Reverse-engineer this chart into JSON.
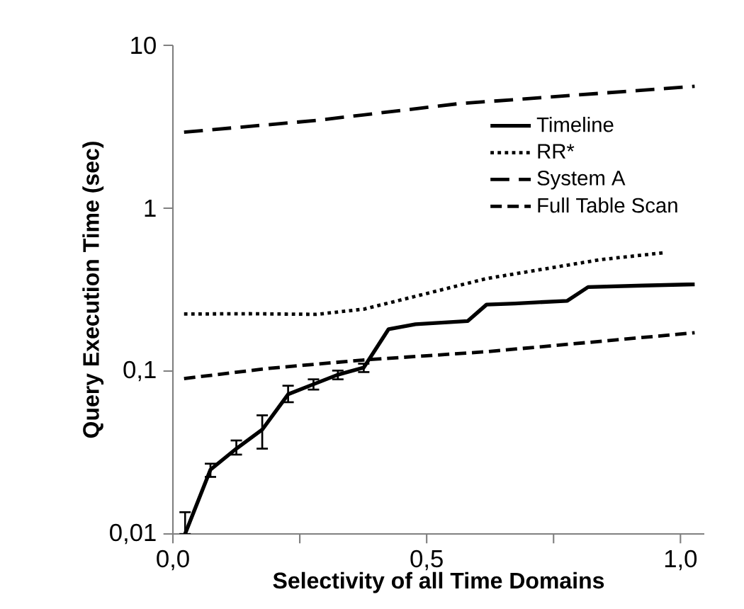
{
  "chart_data": {
    "type": "line",
    "xlabel": "Selectivity of all Time Domains",
    "ylabel": "Query Execution Time (sec)",
    "log": "y",
    "xlim": [
      0,
      1.047
    ],
    "ylim": [
      0.01,
      10
    ],
    "xticks": [
      {
        "value": 0,
        "label": "0,0"
      },
      {
        "value": 0.25,
        "label": null
      },
      {
        "value": 0.5,
        "label": "0,5"
      },
      {
        "value": 0.75,
        "label": null
      },
      {
        "value": 1,
        "label": "1,0"
      }
    ],
    "yticks": [
      {
        "value": 0.01,
        "label": "0,01"
      },
      {
        "value": 0.1,
        "label": "0,1"
      },
      {
        "value": 1,
        "label": "1"
      },
      {
        "value": 10,
        "label": "10"
      }
    ],
    "grid": false,
    "legend": "top right",
    "marker": "none",
    "series": [
      {
        "name": "Timeline",
        "color": "#000000",
        "line_style": "solid",
        "x": [
          0.024,
          0.074,
          0.125,
          0.176,
          0.227,
          0.277,
          0.325,
          0.376,
          0.425,
          0.478,
          0.581,
          0.618,
          0.674,
          0.777,
          0.818,
          0.926,
          1.028
        ],
        "values": [
          0.01,
          0.0248,
          0.0334,
          0.0437,
          0.072,
          0.083,
          0.095,
          0.105,
          0.181,
          0.194,
          0.203,
          0.256,
          0.26,
          0.27,
          0.328,
          0.335,
          0.341
        ],
        "errors": [
          [
            0.01,
            0.0136
          ],
          [
            0.0224,
            0.027
          ],
          [
            0.0307,
            0.0375
          ],
          [
            0.0334,
            0.0535
          ],
          [
            0.0644,
            0.0813
          ],
          [
            0.077,
            0.089
          ],
          [
            0.089,
            0.1007
          ],
          [
            0.0986,
            0.111
          ],
          null,
          null,
          null,
          null,
          null,
          null,
          null,
          null,
          null
        ]
      },
      {
        "name": "RR*",
        "color": "#000000",
        "line_style": "dotted",
        "x": [
          0.022,
          0.15,
          0.283,
          0.376,
          0.488,
          0.618,
          0.842,
          0.972
        ],
        "values": [
          0.224,
          0.225,
          0.223,
          0.24,
          0.293,
          0.37,
          0.483,
          0.535
        ]
      },
      {
        "name": "System A",
        "color": "#000000",
        "line_style": "dashed",
        "x": [
          0.022,
          0.283,
          0.562,
          1.028
        ],
        "values": [
          2.93,
          3.46,
          4.38,
          5.6
        ]
      },
      {
        "name": "Full Table Scan",
        "color": "#000000",
        "line_style": "dashed",
        "x": [
          0.022,
          0.19,
          0.376,
          0.618,
          1.028
        ],
        "values": [
          0.09,
          0.104,
          0.117,
          0.1315,
          0.172
        ]
      }
    ]
  }
}
